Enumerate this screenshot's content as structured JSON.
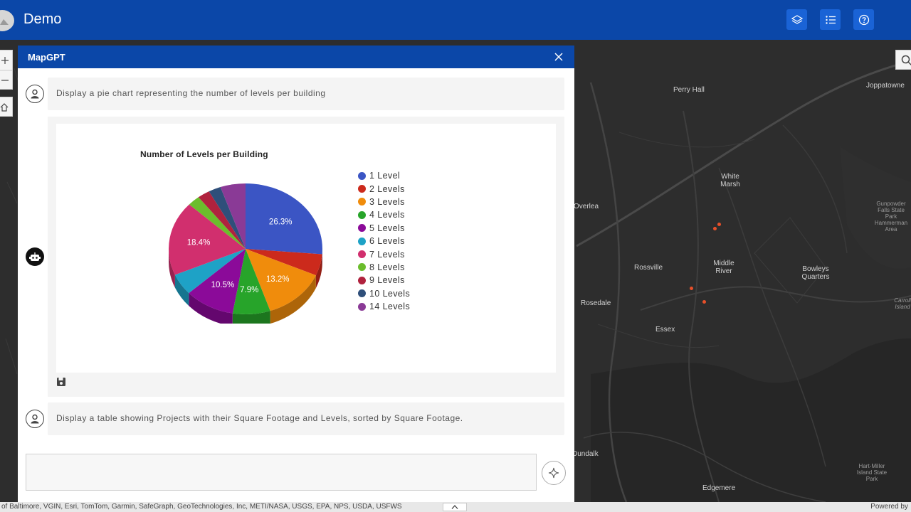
{
  "header": {
    "title": "Demo",
    "icons": [
      "layers-icon",
      "list-icon",
      "help-icon"
    ]
  },
  "panel": {
    "title": "MapGPT",
    "messages": [
      {
        "role": "user",
        "text": "Display a pie chart representing the number of levels per building"
      },
      {
        "role": "bot",
        "content": "chart"
      },
      {
        "role": "user",
        "text": "Display a table showing Projects with their Square Footage and Levels, sorted by Square Footage."
      }
    ],
    "input": {
      "value": "",
      "placeholder": ""
    }
  },
  "chart_data": {
    "type": "pie",
    "title": "Number of Levels per Building",
    "categories": [
      "1 Level",
      "2 Levels",
      "3 Levels",
      "4 Levels",
      "5 Levels",
      "6 Levels",
      "7 Levels",
      "8 Levels",
      "9 Levels",
      "10 Levels",
      "14 Levels"
    ],
    "values": [
      26.3,
      5.3,
      13.2,
      7.9,
      10.5,
      5.3,
      18.4,
      2.6,
      2.6,
      2.6,
      5.3
    ],
    "data_labels": [
      "26.3%",
      "",
      "13.2%",
      "7.9%",
      "10.5%",
      "",
      "18.4%",
      "",
      "",
      "",
      ""
    ],
    "colors": [
      "#3b55c4",
      "#cc2a1c",
      "#f08c0c",
      "#27a42a",
      "#8b0a99",
      "#1ea2c6",
      "#d12f6e",
      "#6bbd2c",
      "#b0223e",
      "#2f4f7a",
      "#8a3a96"
    ],
    "legend_position": "right",
    "style": "3d"
  },
  "map": {
    "places": [
      "Perry Hall",
      "Joppatowne",
      "White Marsh",
      "Overlea",
      "Rossville",
      "Middle River",
      "Bowleys Quarters",
      "Rosedale",
      "Essex",
      "Gunpowder Falls State Park Hammerman Area",
      "Carroll Island",
      "Hart-Miller Island State Park",
      "Dundalk",
      "Edgemere"
    ]
  },
  "attribution": {
    "text": "of Baltimore, VGIN, Esri, TomTom, Garmin, SafeGraph, GeoTechnologies, Inc, METI/NASA, USGS, EPA, NPS, USDA, USFWS",
    "powered": "Powered by"
  }
}
